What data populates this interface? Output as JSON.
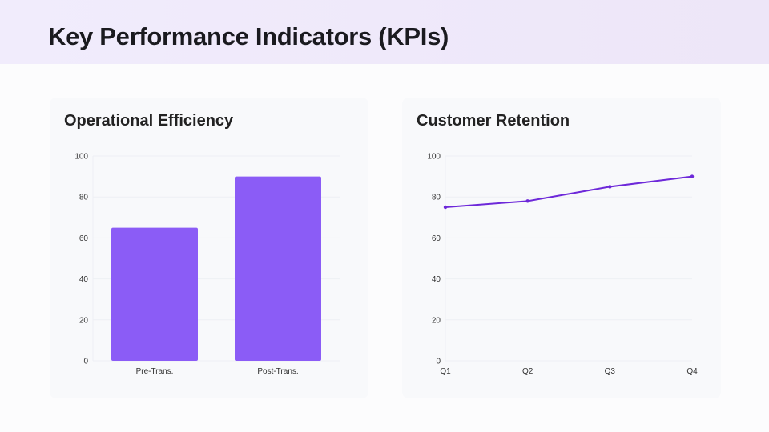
{
  "header": {
    "title": "Key Performance Indicators (KPIs)"
  },
  "chart_data": [
    {
      "type": "bar",
      "title": "Operational Efficiency",
      "categories": [
        "Pre-Trans.",
        "Post-Trans."
      ],
      "values": [
        65,
        90
      ],
      "ylim": [
        0,
        100
      ],
      "yticks": [
        "0",
        "20",
        "40",
        "60",
        "80",
        "100"
      ],
      "color": "#8b5cf6",
      "grid": true
    },
    {
      "type": "line",
      "title": "Customer Retention",
      "categories": [
        "Q1",
        "Q2",
        "Q3",
        "Q4"
      ],
      "values": [
        75,
        78,
        85,
        90
      ],
      "ylim": [
        0,
        100
      ],
      "yticks": [
        "0",
        "20",
        "40",
        "60",
        "80",
        "100"
      ],
      "color": "#6d28d9",
      "grid": true
    }
  ]
}
